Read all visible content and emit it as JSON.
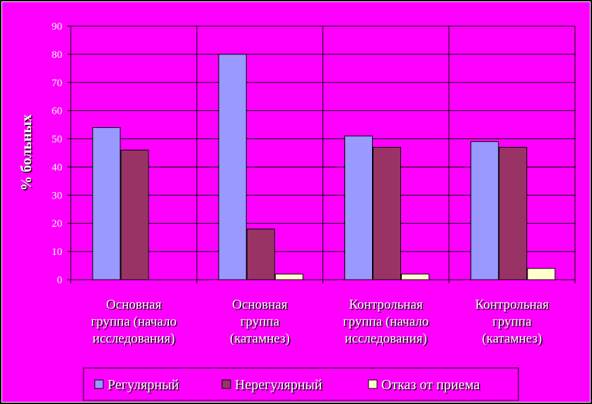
{
  "chart_data": {
    "type": "bar",
    "ylabel": "% больных",
    "ylim": [
      0,
      90
    ],
    "yticks": [
      0,
      10,
      20,
      30,
      40,
      50,
      60,
      70,
      80,
      90
    ],
    "grid": true,
    "legend_position": "bottom",
    "categories": [
      [
        "Основная",
        "группа (начало",
        "исследования)"
      ],
      [
        "Основная",
        "группа",
        "(катамнез)"
      ],
      [
        "Контрольная",
        "группа (начало",
        "исследования)"
      ],
      [
        "Контрольная",
        "группа",
        "(катамнез)"
      ]
    ],
    "series": [
      {
        "name": "Регулярный",
        "color": "#9999ff",
        "values": [
          54,
          80,
          51,
          49
        ]
      },
      {
        "name": "Нерегулярный",
        "color": "#993366",
        "values": [
          46,
          18,
          47,
          47
        ]
      },
      {
        "name": "Отказ от приема",
        "color": "#ffffcc",
        "values": [
          0,
          2,
          2,
          4
        ]
      }
    ]
  },
  "colors": {
    "background": "#ff00ff",
    "outer": "#000000",
    "text": "#ffffff"
  }
}
